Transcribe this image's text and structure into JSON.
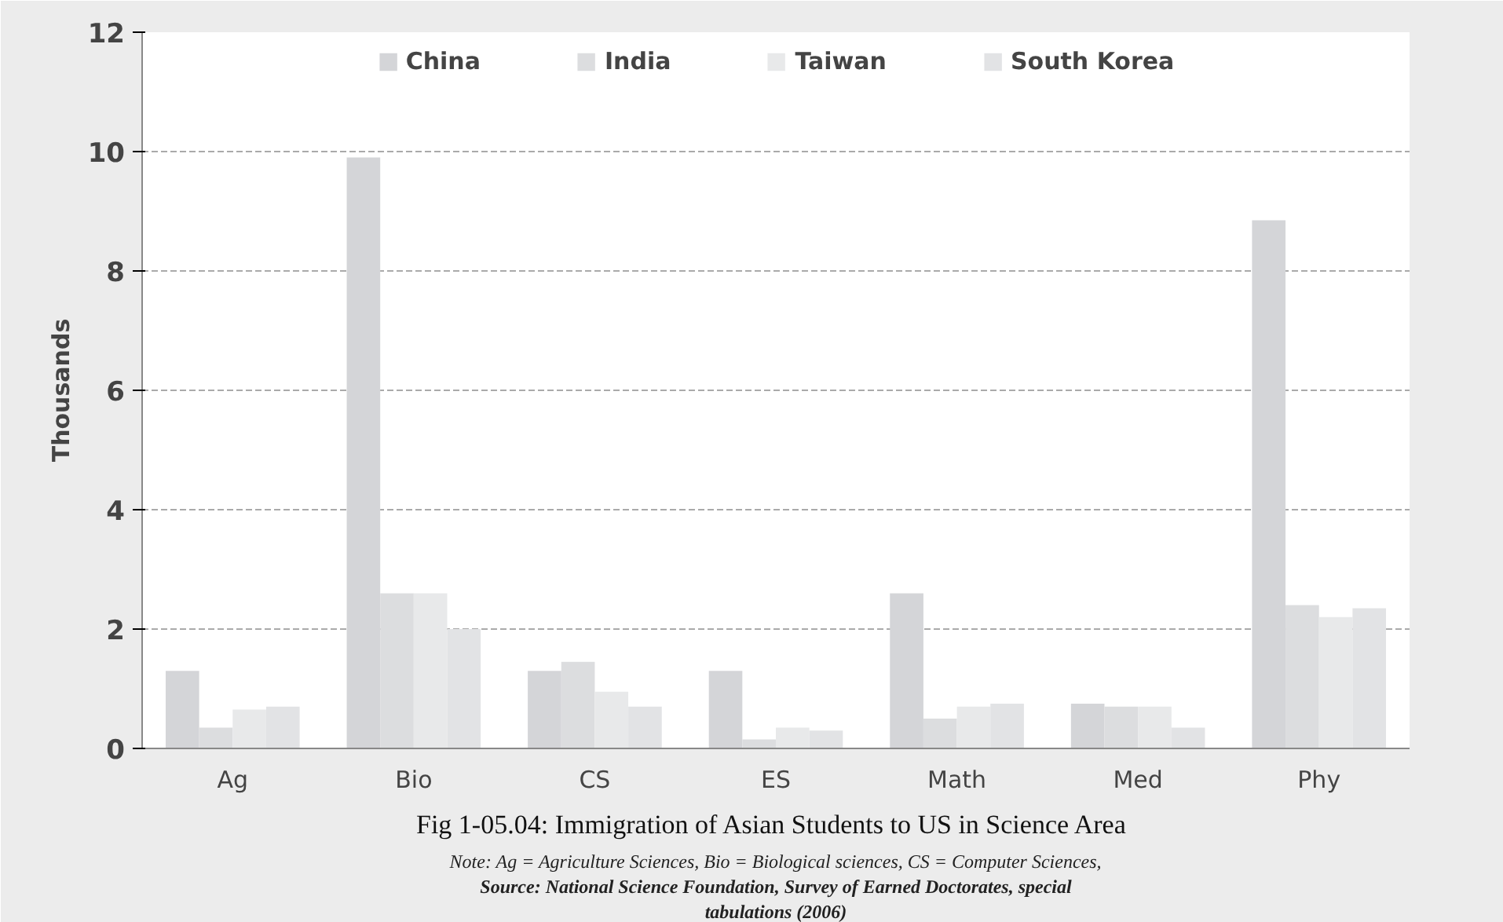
{
  "chart_data": {
    "type": "bar",
    "title": "Fig 1-05.04: Immigration of  Asian Students to US in Science Area",
    "ylabel": "Thousands",
    "categories": [
      "Ag",
      "Bio",
      "CS",
      "ES",
      "Math",
      "Med",
      "Phy"
    ],
    "series": [
      {
        "name": "China",
        "color": "#d4d5d8",
        "values": [
          1.3,
          9.9,
          1.3,
          1.3,
          2.6,
          0.75,
          8.85
        ]
      },
      {
        "name": "India",
        "color": "#dcdddf",
        "values": [
          0.35,
          2.6,
          1.45,
          0.15,
          0.5,
          0.7,
          2.4
        ]
      },
      {
        "name": "Taiwan",
        "color": "#e8e9ea",
        "values": [
          0.65,
          2.6,
          0.95,
          0.35,
          0.7,
          0.7,
          2.2
        ]
      },
      {
        "name": "South Korea",
        "color": "#e2e3e5",
        "values": [
          0.7,
          2.0,
          0.7,
          0.3,
          0.75,
          0.35,
          2.35
        ]
      }
    ],
    "ylim": [
      0,
      12
    ],
    "yticks": [
      0,
      2,
      4,
      6,
      8,
      10,
      12
    ],
    "grid": "y",
    "legend": "top",
    "annotations": [
      "Note: Ag = Agriculture Sciences, Bio = Biological sciences, CS = Computer Sciences,",
      "Source: National Science Foundation, Survey of Earned Doctorates, special",
      "tabulations (2006)"
    ]
  }
}
